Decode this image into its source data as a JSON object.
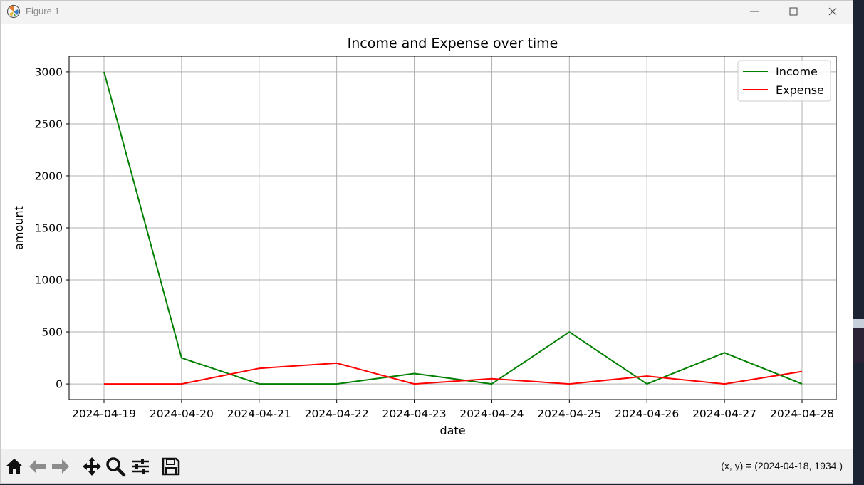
{
  "window": {
    "title": "Figure 1",
    "app_icon": "matplotlib-icon",
    "controls": [
      "minimize-icon",
      "maximize-icon",
      "close-icon"
    ]
  },
  "chart_data": {
    "type": "line",
    "title": "Income and Expense over time",
    "xlabel": "date",
    "ylabel": "amount",
    "x": [
      "2024-04-19",
      "2024-04-20",
      "2024-04-21",
      "2024-04-22",
      "2024-04-23",
      "2024-04-24",
      "2024-04-25",
      "2024-04-26",
      "2024-04-27",
      "2024-04-28"
    ],
    "yticks": [
      0,
      500,
      1000,
      1500,
      2000,
      2500,
      3000
    ],
    "ylim": [
      -150,
      3150
    ],
    "grid": true,
    "legend_position": "top-right",
    "series": [
      {
        "name": "Income",
        "color": "#008000",
        "values": [
          3000,
          250,
          0,
          0,
          100,
          0,
          500,
          0,
          300,
          0
        ]
      },
      {
        "name": "Expense",
        "color": "#ff0000",
        "values": [
          0,
          0,
          150,
          200,
          0,
          50,
          0,
          75,
          0,
          120
        ]
      }
    ]
  },
  "toolbar": {
    "buttons": [
      "home-icon",
      "back-icon",
      "forward-icon",
      "pan-icon",
      "zoom-icon",
      "configure-subplots-icon",
      "save-icon"
    ],
    "coords_text": "(x, y) = (2024-04-18, 1934.)"
  }
}
